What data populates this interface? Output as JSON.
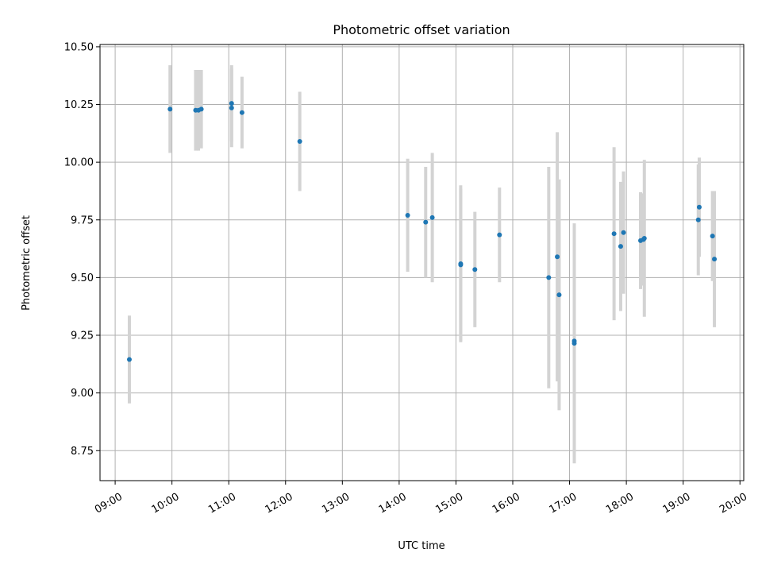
{
  "chart_data": {
    "type": "scatter",
    "title": "Photometric offset variation",
    "xlabel": "UTC time",
    "ylabel": "Photometric offset",
    "xlim": [
      "08:44",
      "20:04"
    ],
    "ylim": [
      8.62,
      10.51
    ],
    "x_ticks": [
      "09:00",
      "10:00",
      "11:00",
      "12:00",
      "13:00",
      "14:00",
      "15:00",
      "16:00",
      "17:00",
      "18:00",
      "19:00",
      "20:00"
    ],
    "y_ticks": [
      "8.75",
      "9.00",
      "9.25",
      "9.50",
      "9.75",
      "10.00",
      "10.25",
      "10.50"
    ],
    "grid": true,
    "colors": {
      "points": "#1f77b4",
      "error_bars": "#d3d3d3"
    },
    "series": [
      {
        "points": [
          {
            "t": "09:15",
            "y": 9.145,
            "err": 0.19
          },
          {
            "t": "09:58",
            "y": 10.23,
            "err": 0.19
          },
          {
            "t": "10:25",
            "y": 10.225,
            "err": 0.175
          },
          {
            "t": "10:28",
            "y": 10.225,
            "err": 0.175
          },
          {
            "t": "10:31",
            "y": 10.23,
            "err": 0.17
          },
          {
            "t": "11:03",
            "y": 10.255,
            "err": 0.165
          },
          {
            "t": "11:03",
            "y": 10.235,
            "err": 0.17
          },
          {
            "t": "11:14",
            "y": 10.215,
            "err": 0.155
          },
          {
            "t": "12:15",
            "y": 10.09,
            "err": 0.215
          },
          {
            "t": "14:09",
            "y": 9.77,
            "err": 0.245
          },
          {
            "t": "14:28",
            "y": 9.74,
            "err": 0.24
          },
          {
            "t": "14:35",
            "y": 9.76,
            "err": 0.28
          },
          {
            "t": "15:05",
            "y": 9.56,
            "err": 0.34
          },
          {
            "t": "15:05",
            "y": 9.555,
            "err": 0.33
          },
          {
            "t": "15:20",
            "y": 9.535,
            "err": 0.25
          },
          {
            "t": "15:46",
            "y": 9.685,
            "err": 0.205
          },
          {
            "t": "16:38",
            "y": 9.5,
            "err": 0.48
          },
          {
            "t": "16:47",
            "y": 9.59,
            "err": 0.54
          },
          {
            "t": "16:49",
            "y": 9.425,
            "err": 0.5
          },
          {
            "t": "17:05",
            "y": 9.225,
            "err": 0.5
          },
          {
            "t": "17:05",
            "y": 9.215,
            "err": 0.52
          },
          {
            "t": "17:47",
            "y": 9.69,
            "err": 0.375
          },
          {
            "t": "17:54",
            "y": 9.635,
            "err": 0.28
          },
          {
            "t": "17:57",
            "y": 9.695,
            "err": 0.265
          },
          {
            "t": "18:15",
            "y": 9.66,
            "err": 0.21
          },
          {
            "t": "18:18",
            "y": 9.665,
            "err": 0.2
          },
          {
            "t": "18:19",
            "y": 9.67,
            "err": 0.34
          },
          {
            "t": "19:16",
            "y": 9.75,
            "err": 0.24
          },
          {
            "t": "19:17",
            "y": 9.805,
            "err": 0.215
          },
          {
            "t": "19:31",
            "y": 9.68,
            "err": 0.195
          },
          {
            "t": "19:33",
            "y": 9.58,
            "err": 0.295
          }
        ]
      }
    ]
  }
}
